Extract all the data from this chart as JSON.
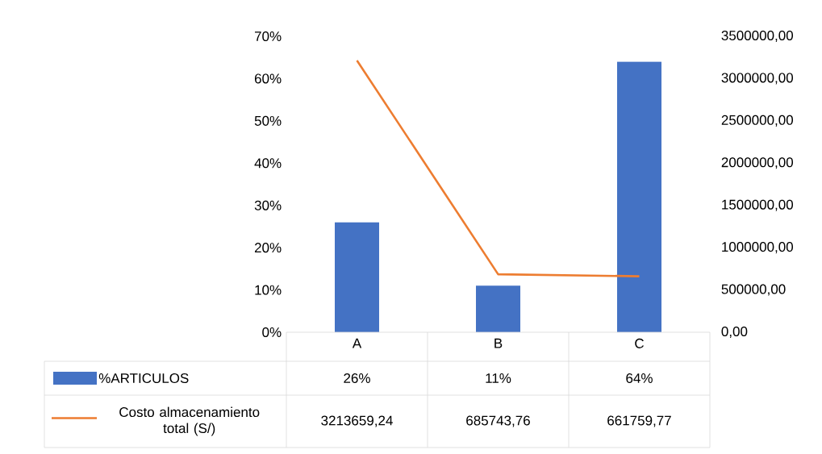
{
  "chart_data": {
    "type": "bar",
    "categories": [
      "A",
      "B",
      "C"
    ],
    "series": [
      {
        "name": "%ARTICULOS",
        "color": "#4472c4",
        "values": [
          26,
          11,
          64
        ],
        "value_labels": [
          "26%",
          "11%",
          "64%"
        ]
      },
      {
        "name": "Costo almacenamiento total (S/)",
        "type": "line",
        "axis": "y2",
        "color": "#ed7d31",
        "values": [
          3213659.24,
          685743.76,
          661759.77
        ],
        "value_labels": [
          "3213659,24",
          "685743,76",
          "661759,77"
        ]
      }
    ],
    "ylim": [
      0,
      70
    ],
    "yticks": [
      {
        "value": 0,
        "label": "0%"
      },
      {
        "value": 10,
        "label": "10%"
      },
      {
        "value": 20,
        "label": "20%"
      },
      {
        "value": 30,
        "label": "30%"
      },
      {
        "value": 40,
        "label": "40%"
      },
      {
        "value": 50,
        "label": "50%"
      },
      {
        "value": 60,
        "label": "60%"
      },
      {
        "value": 70,
        "label": "70%"
      }
    ],
    "y2lim": [
      0,
      3500000
    ],
    "y2ticks": [
      {
        "value": 0,
        "label": "0,00"
      },
      {
        "value": 500000,
        "label": "500000,00"
      },
      {
        "value": 1000000,
        "label": "1000000,00"
      },
      {
        "value": 1500000,
        "label": "1500000,00"
      },
      {
        "value": 2000000,
        "label": "2000000,00"
      },
      {
        "value": 2500000,
        "label": "2500000,00"
      },
      {
        "value": 3000000,
        "label": "3000000,00"
      },
      {
        "value": 3500000,
        "label": "3500000,00"
      }
    ],
    "legend": "bottom",
    "grid": false
  }
}
